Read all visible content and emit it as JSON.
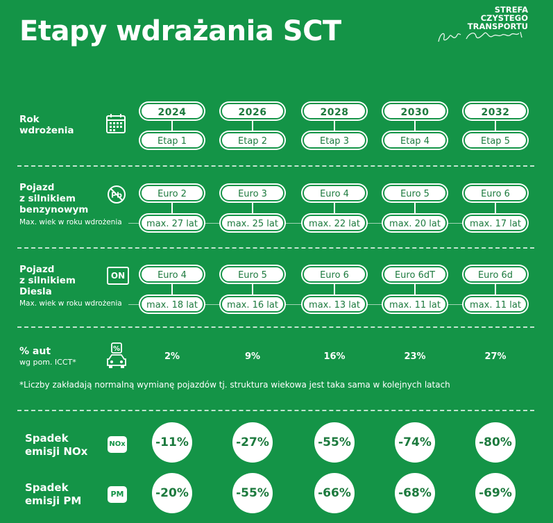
{
  "title": "Etapy wdrażania SCT",
  "brand": {
    "line1": "STREFA",
    "line2": "CZYSTEGO",
    "line3": "TRANSPORTU"
  },
  "rows": {
    "year": {
      "label_line1": "Rok",
      "label_line2": "wdrożenia"
    },
    "petrol": {
      "label_line1": "Pojazd",
      "label_line2": "z silnikiem",
      "label_line3": "benzynowym",
      "sub": "Max. wiek w roku wdrożenia"
    },
    "diesel": {
      "label_line1": "Pojazd",
      "label_line2": "z silnikiem",
      "label_line3": "Diesla",
      "sub": "Max. wiek w roku wdrożenia",
      "badge": "ON"
    },
    "share": {
      "label_line1": "% aut",
      "label_line2": "wg pom. ICCT*"
    },
    "nox": {
      "label_line1": "Spadek",
      "label_line2": "emisji NOx",
      "badge": "NOx"
    },
    "pm": {
      "label_line1": "Spadek",
      "label_line2": "emisji PM",
      "badge": "PM"
    }
  },
  "years": [
    "2024",
    "2026",
    "2028",
    "2030",
    "2032"
  ],
  "stages": [
    "Etap 1",
    "Etap 2",
    "Etap 3",
    "Etap 4",
    "Etap 5"
  ],
  "petrol_norms": [
    "Euro 2",
    "Euro 3",
    "Euro 4",
    "Euro 5",
    "Euro 6"
  ],
  "petrol_ages": [
    "max. 27 lat",
    "max. 25 lat",
    "max. 22 lat",
    "max. 20 lat",
    "max. 17 lat"
  ],
  "diesel_norms": [
    "Euro 4",
    "Euro 5",
    "Euro 6",
    "Euro 6dT",
    "Euro 6d"
  ],
  "diesel_ages": [
    "max. 18 lat",
    "max. 16 lat",
    "max. 13 lat",
    "max. 11 lat",
    "max. 11 lat"
  ],
  "shares": [
    "2%",
    "9%",
    "16%",
    "23%",
    "27%"
  ],
  "footnote": "*Liczby zakładają normalną wymianę pojazdów tj. struktura wiekowa jest taka sama w kolejnych latach",
  "nox_drops": [
    "-11%",
    "-27%",
    "-55%",
    "-74%",
    "-80%"
  ],
  "pm_drops": [
    "-20%",
    "-55%",
    "-66%",
    "-68%",
    "-69%"
  ],
  "icons": {
    "year": "calendar-icon",
    "petrol": "no-lead-pb-icon",
    "share": "car-percent-icon"
  },
  "colors": {
    "background": "#149447",
    "pill_text": "#1d7a3e",
    "white": "#ffffff"
  }
}
